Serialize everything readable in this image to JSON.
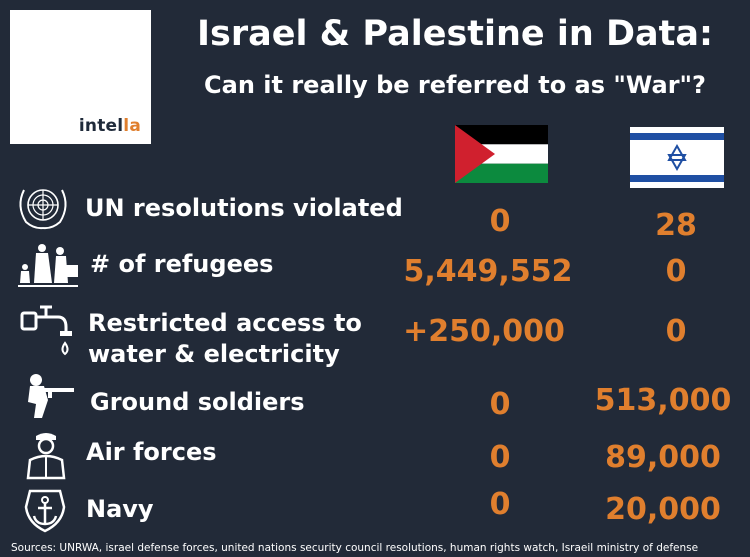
{
  "logo": {
    "text_main": "intel",
    "text_accent": "la"
  },
  "header": {
    "title": "Israel & Palestine in Data:",
    "subtitle": "Can it really be referred to as \"War\"?"
  },
  "colors": {
    "background": "#222a38",
    "accent": "#e07f2e",
    "text": "#ffffff"
  },
  "rows": [
    {
      "icon": "un-emblem-icon",
      "label": "UN resolutions violated",
      "palestine": "0",
      "israel": "28"
    },
    {
      "icon": "refugees-icon",
      "label": "# of refugees",
      "palestine": "5,449,552",
      "israel": "0"
    },
    {
      "icon": "water-tap-icon",
      "label_lines": [
        "Restricted access to",
        "water & electricity"
      ],
      "palestine": "+250,000",
      "israel": "0"
    },
    {
      "icon": "soldier-icon",
      "label": "Ground soldiers",
      "palestine": "0",
      "israel": "513,000"
    },
    {
      "icon": "pilot-icon",
      "label": "Air forces",
      "palestine": "0",
      "israel": "89,000"
    },
    {
      "icon": "navy-anchor-icon",
      "label": "Navy",
      "palestine": "0",
      "israel": "20,000"
    }
  ],
  "footer": "Sources: UNRWA, israel defense forces, united nations security council resolutions, human rights watch, Israeil ministry of defense"
}
